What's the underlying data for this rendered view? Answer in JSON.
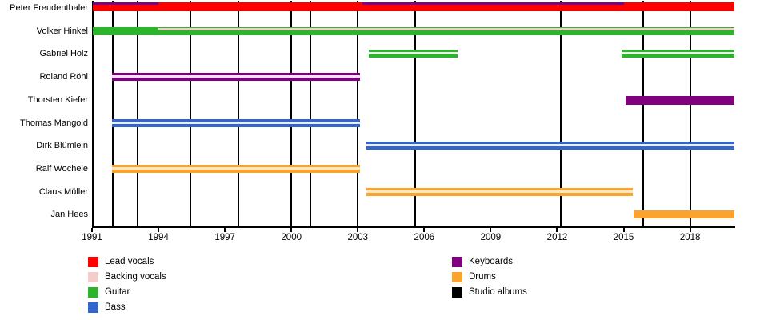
{
  "chart_data": {
    "type": "bar",
    "subtype": "band-members-timeline",
    "x_range": [
      1991,
      2020
    ],
    "x_ticks": [
      1991,
      1994,
      1997,
      2000,
      2003,
      2006,
      2009,
      2012,
      2015,
      2018
    ],
    "rows": [
      {
        "name": "Peter Freudenthaler",
        "bars": [
          {
            "role": "lead_vocals",
            "start": 1991.05,
            "end": 2020,
            "h": 11,
            "dy": -7,
            "style": "solid"
          },
          {
            "role": "keyboards",
            "start": 1991.05,
            "end": 1994.0,
            "h": 3,
            "dy": -7,
            "style": "solid"
          },
          {
            "role": "keyboards",
            "start": 2003.2,
            "end": 2015.0,
            "h": 3,
            "dy": -7,
            "style": "solid"
          }
        ]
      },
      {
        "name": "Volker Hinkel",
        "bars": [
          {
            "role": "guitar",
            "start": 1991.05,
            "end": 2020,
            "h": 10,
            "dy": -5,
            "style": "solid"
          },
          {
            "role": "backing_vocals",
            "start": 1991.05,
            "end": 2020,
            "h": 3,
            "dy": -4,
            "style": "solid"
          },
          {
            "role": "guitar",
            "start": 1991.05,
            "end": 1994.0,
            "h": 10,
            "dy": -5,
            "style": "solid"
          }
        ]
      },
      {
        "name": "Gabriel Holz",
        "bars": [
          {
            "role": "guitar",
            "start": 2003.5,
            "end": 2007.5,
            "h": 10,
            "dy": -5,
            "style": "striped"
          },
          {
            "role": "guitar",
            "start": 2014.9,
            "end": 2020,
            "h": 10,
            "dy": -5,
            "style": "striped"
          }
        ]
      },
      {
        "name": "Roland Röhl",
        "bars": [
          {
            "role": "keyboards",
            "start": 1991.9,
            "end": 2003.1,
            "h": 10,
            "dy": -5,
            "style": "striped"
          }
        ]
      },
      {
        "name": "Thorsten Kiefer",
        "bars": [
          {
            "role": "keyboards",
            "start": 2015.1,
            "end": 2020,
            "h": 11,
            "dy": -5,
            "style": "solid"
          }
        ]
      },
      {
        "name": "Thomas Mangold",
        "bars": [
          {
            "role": "bass",
            "start": 1991.9,
            "end": 2003.1,
            "h": 10,
            "dy": -5,
            "style": "striped"
          }
        ]
      },
      {
        "name": "Dirk Blümlein",
        "bars": [
          {
            "role": "bass",
            "start": 2003.4,
            "end": 2020,
            "h": 10,
            "dy": -5,
            "style": "striped"
          }
        ]
      },
      {
        "name": "Ralf Wochele",
        "bars": [
          {
            "role": "drums",
            "start": 1991.9,
            "end": 2003.1,
            "h": 10,
            "dy": -5,
            "style": "striped"
          }
        ]
      },
      {
        "name": "Claus Müller",
        "bars": [
          {
            "role": "drums",
            "start": 2003.4,
            "end": 2015.4,
            "h": 10,
            "dy": -5,
            "style": "striped"
          }
        ]
      },
      {
        "name": "Jan Hees",
        "bars": [
          {
            "role": "drums",
            "start": 2015.45,
            "end": 2020,
            "h": 10,
            "dy": -5,
            "style": "solid"
          }
        ]
      }
    ],
    "album_years": [
      1991.95,
      1993.05,
      1995.45,
      1997.6,
      2000.0,
      2000.85,
      2003.0,
      2005.6,
      2012.15,
      2015.9,
      2018.0
    ],
    "roles": {
      "lead_vocals": {
        "label": "Lead vocals",
        "color": "#ff0000",
        "light": "#ff8080"
      },
      "backing_vocals": {
        "label": "Backing vocals",
        "color": "#f4cccc",
        "light": "#fbeeee"
      },
      "guitar": {
        "label": "Guitar",
        "color": "#2cb52c",
        "light": "#e9f7e9"
      },
      "bass": {
        "label": "Bass",
        "color": "#3366cc",
        "light": "#e9effa"
      },
      "keyboards": {
        "label": "Keyboards",
        "color": "#800080",
        "light": "#f2e3f2"
      },
      "drums": {
        "label": "Drums",
        "color": "#fca32d",
        "light": "#fee7c3"
      },
      "studio_albums": {
        "label": "Studio albums",
        "color": "#000000",
        "light": "#000000"
      }
    },
    "legend_columns": [
      [
        "lead_vocals",
        "backing_vocals",
        "guitar",
        "bass"
      ],
      [
        "keyboards",
        "drums",
        "studio_albums"
      ]
    ]
  }
}
